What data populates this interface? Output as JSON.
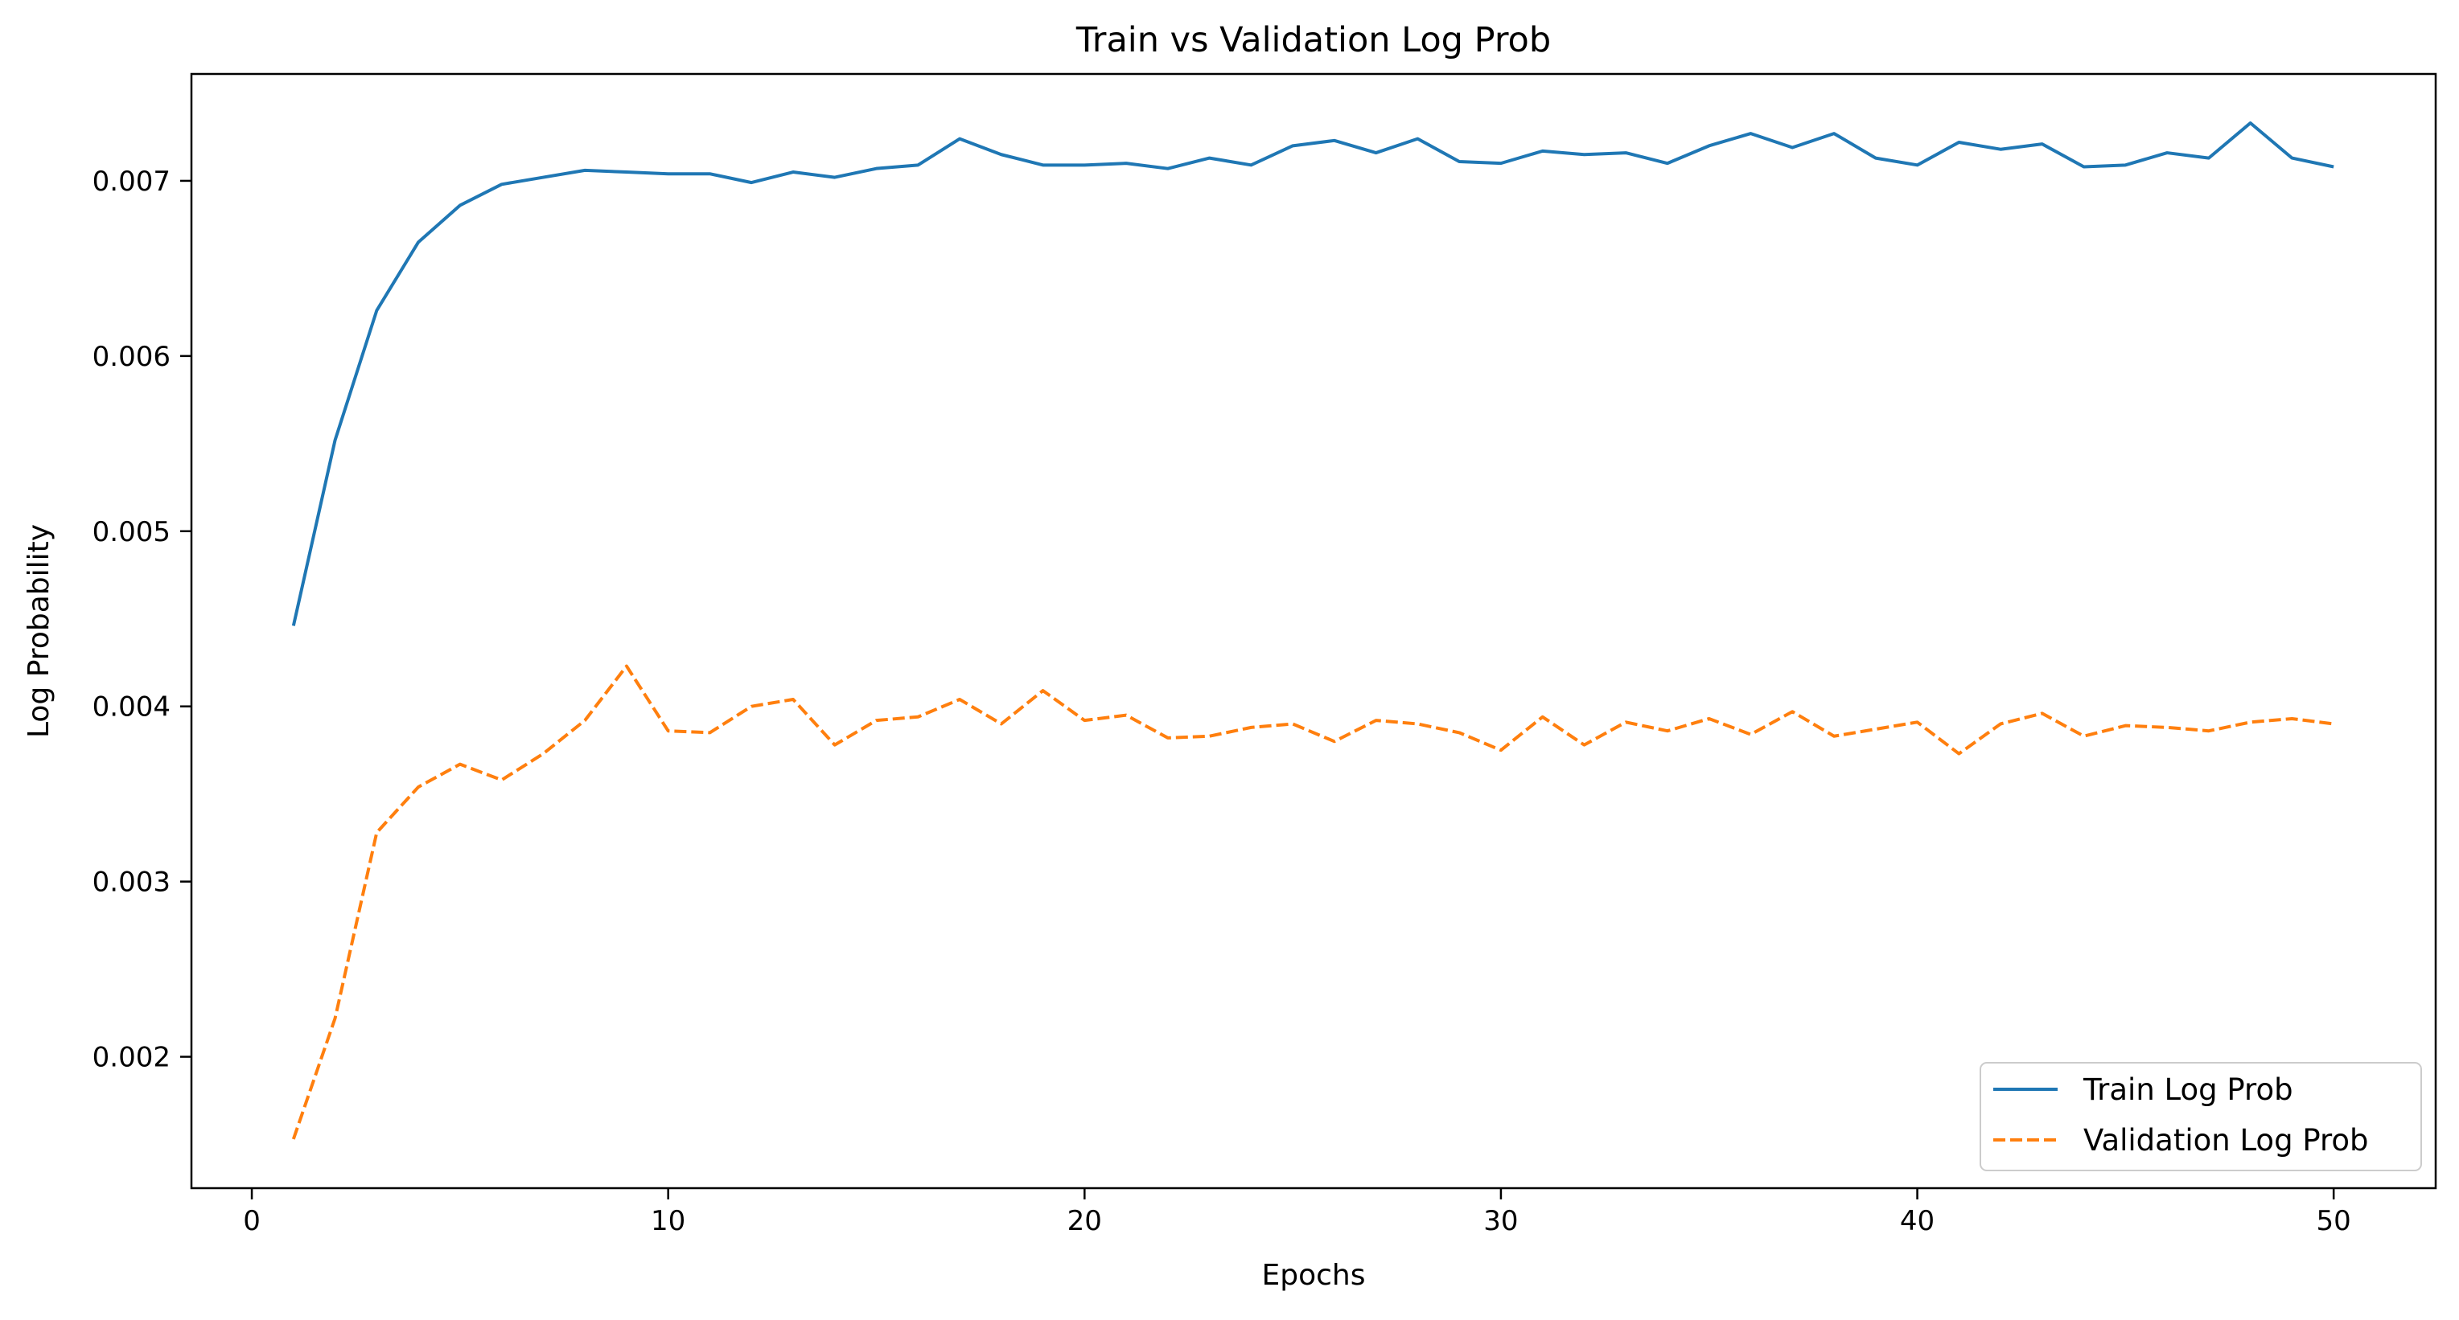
{
  "chart_data": {
    "type": "line",
    "title": "Train vs Validation Log Prob",
    "xlabel": "Epochs",
    "ylabel": "Log Probability",
    "xlim": [
      -1.45,
      52.45
    ],
    "ylim": [
      0.00125,
      0.00761
    ],
    "x_ticks": [
      0,
      10,
      20,
      30,
      40,
      50
    ],
    "y_ticks": [
      0.002,
      0.003,
      0.004,
      0.005,
      0.006,
      0.007
    ],
    "x_tick_labels": [
      "0",
      "10",
      "20",
      "30",
      "40",
      "50"
    ],
    "y_tick_labels": [
      "0.002",
      "0.003",
      "0.004",
      "0.005",
      "0.006",
      "0.007"
    ],
    "grid": false,
    "legend_position": "lower-right",
    "x": [
      1,
      2,
      3,
      4,
      5,
      6,
      7,
      8,
      9,
      10,
      11,
      12,
      13,
      14,
      15,
      16,
      17,
      18,
      19,
      20,
      21,
      22,
      23,
      24,
      25,
      26,
      27,
      28,
      29,
      30,
      31,
      32,
      33,
      34,
      35,
      36,
      37,
      38,
      39,
      40,
      41,
      42,
      43,
      44,
      45,
      46,
      47,
      48,
      49,
      50
    ],
    "series": [
      {
        "name": "Train Log Prob",
        "color": "#1f77b4",
        "style": "solid",
        "values": [
          0.00446,
          0.00552,
          0.00626,
          0.00665,
          0.00686,
          0.00698,
          0.00702,
          0.00706,
          0.00705,
          0.00704,
          0.00704,
          0.00699,
          0.00705,
          0.00702,
          0.00707,
          0.00709,
          0.00724,
          0.00715,
          0.00709,
          0.00709,
          0.0071,
          0.00707,
          0.00713,
          0.00709,
          0.0072,
          0.00723,
          0.00716,
          0.00724,
          0.00711,
          0.0071,
          0.00717,
          0.00715,
          0.00716,
          0.0071,
          0.0072,
          0.00727,
          0.00719,
          0.00727,
          0.00713,
          0.00709,
          0.00722,
          0.00718,
          0.00721,
          0.00708,
          0.00709,
          0.00716,
          0.00713,
          0.00733,
          0.00713,
          0.00708
        ]
      },
      {
        "name": "Validation Log Prob",
        "color": "#ff7f0e",
        "style": "dashed",
        "values": [
          0.00153,
          0.00222,
          0.00328,
          0.00354,
          0.00367,
          0.00358,
          0.00373,
          0.00392,
          0.00423,
          0.00386,
          0.00385,
          0.004,
          0.00404,
          0.00378,
          0.00392,
          0.00394,
          0.00404,
          0.0039,
          0.00409,
          0.00392,
          0.00395,
          0.00382,
          0.00383,
          0.00388,
          0.0039,
          0.0038,
          0.00392,
          0.0039,
          0.00385,
          0.00375,
          0.00394,
          0.00378,
          0.00391,
          0.00386,
          0.00393,
          0.00384,
          0.00397,
          0.00383,
          0.00387,
          0.00391,
          0.00373,
          0.0039,
          0.00396,
          0.00383,
          0.00389,
          0.00388,
          0.00386,
          0.00391,
          0.00393,
          0.0039
        ]
      }
    ]
  }
}
